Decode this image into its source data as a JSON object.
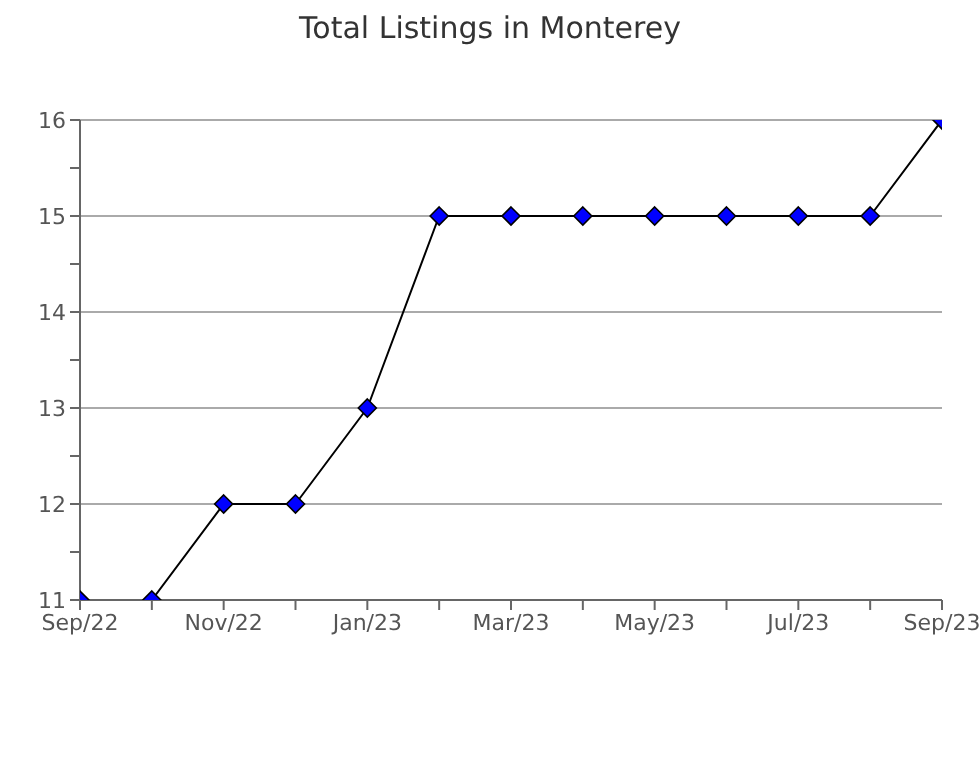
{
  "chart_data": {
    "type": "line",
    "title": "Total Listings in Monterey",
    "categories": [
      "Sep/22",
      null,
      "Nov/22",
      null,
      "Jan/23",
      null,
      "Mar/23",
      null,
      "May/23",
      null,
      "Jul/23",
      null,
      "Sep/23"
    ],
    "series": [
      {
        "color": "#0000ff",
        "values": [
          11,
          11,
          12,
          12,
          13,
          15,
          15,
          15,
          15,
          15,
          15,
          15,
          16
        ]
      }
    ],
    "ylim": [
      11,
      16
    ],
    "yticks": [
      11,
      {
        "value": 11.5,
        "label": null
      },
      12,
      {
        "value": 12.5,
        "label": null
      },
      13,
      {
        "value": 13.5,
        "label": null
      },
      14,
      {
        "value": 14.5,
        "label": null
      },
      15,
      {
        "value": 15.5,
        "label": null
      },
      16
    ],
    "grid": "y",
    "marker": "diamond",
    "line_style": "solid",
    "legend": false
  }
}
